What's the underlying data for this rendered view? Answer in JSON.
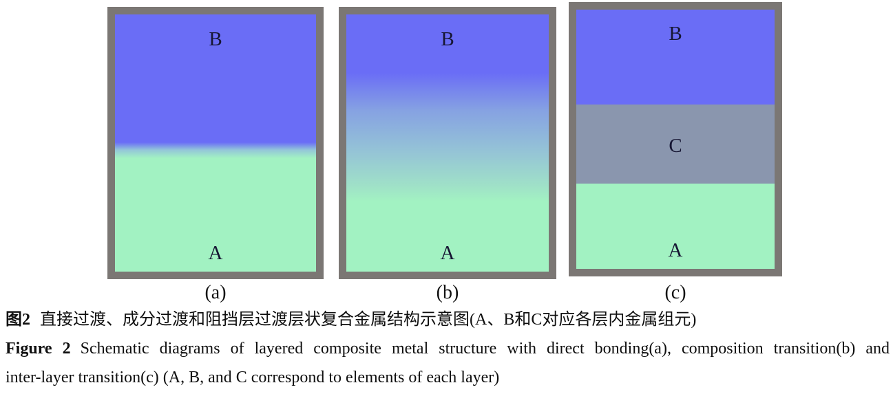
{
  "figure": {
    "panels": [
      {
        "caption": "(a)",
        "layers": [
          {
            "label": "B"
          },
          {
            "label": "A"
          }
        ]
      },
      {
        "caption": "(b)",
        "layers": [
          {
            "label": "B"
          },
          {
            "label": "A"
          }
        ]
      },
      {
        "caption": "(c)",
        "layers": [
          {
            "label": "B"
          },
          {
            "label": "C"
          },
          {
            "label": "A"
          }
        ]
      }
    ],
    "caption_zh": {
      "label": "图2",
      "text": "直接过渡、成分过渡和阻挡层过渡层状复合金属结构示意图(A、B和C对应各层内金属组元)"
    },
    "caption_en": {
      "label": "Figure 2",
      "line1": "Schematic diagrams of layered composite metal structure with direct bonding(a), composition transition(b) and",
      "line2": "inter-layer transition(c) (A, B, and C correspond to elements of each layer)"
    },
    "colors": {
      "metal_b_blue": "#6a6df6",
      "metal_a_green": "#a2f2c2",
      "barrier_c_gray": "#8a96ae",
      "frame_gray": "#7b7774"
    }
  }
}
